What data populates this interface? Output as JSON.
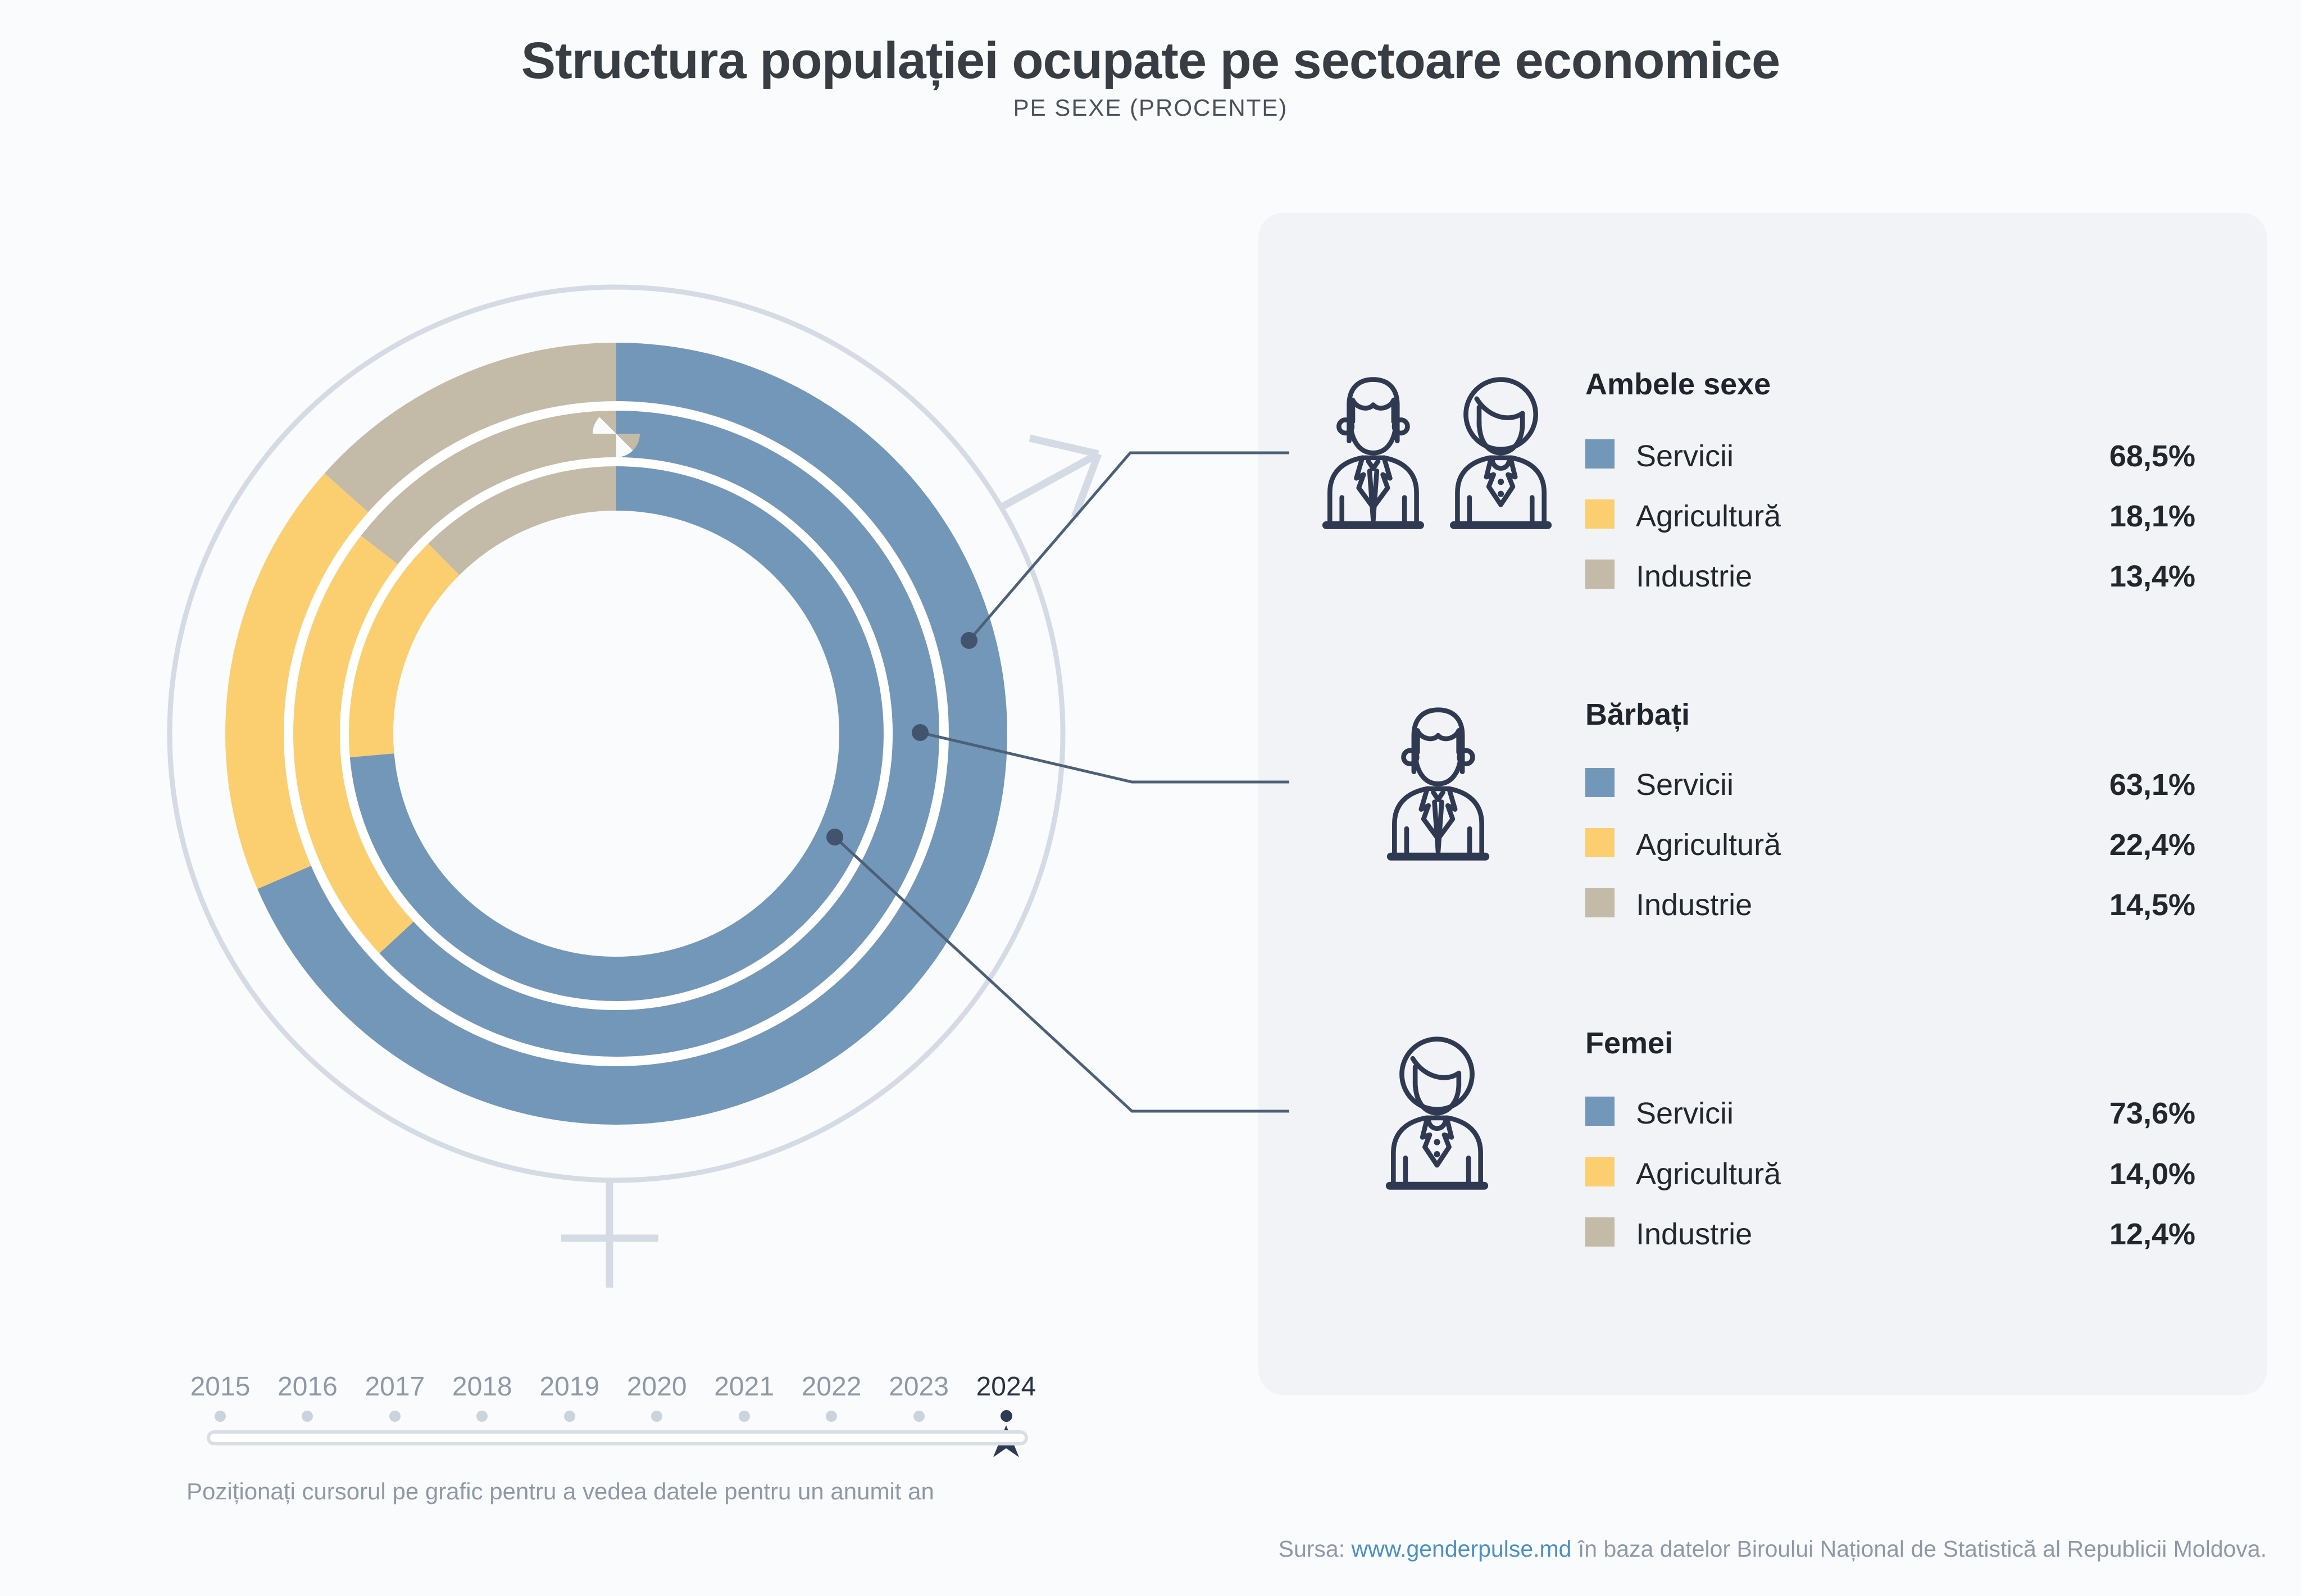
{
  "header": {
    "title": "Structura populației ocupate pe sectoare economice",
    "subtitle": "PE SEXE (PROCENTE)"
  },
  "chart_data": {
    "type": "donut",
    "title": "Structura populației ocupate pe sectoare economice",
    "subtitle": "PE SEXE (PROCENTE)",
    "year": "2024",
    "unit": "%",
    "categories": [
      "Servicii",
      "Agricultură",
      "Industrie"
    ],
    "colors": [
      "#7397b9",
      "#fbce70",
      "#c3baa8"
    ],
    "start": "12-oclock-clockwise",
    "rings": [
      {
        "name": "Ambele sexe",
        "position": "outer",
        "values": [
          68.5,
          18.1,
          13.4
        ]
      },
      {
        "name": "Bărbați",
        "position": "middle",
        "values": [
          63.1,
          22.4,
          14.5
        ]
      },
      {
        "name": "Femei",
        "position": "inner",
        "values": [
          73.6,
          14.0,
          12.4
        ]
      }
    ]
  },
  "colors": {
    "servicii": "#7397b9",
    "agricultura": "#fbce70",
    "industrie": "#c3baa8",
    "accent_navy": "#2e3a52",
    "callout": "#4d6078",
    "gender_symbol": "#d4dbe4",
    "panel_bg": "#f1f3f6",
    "page_bg": "#fafbfc",
    "link_blue": "#4a8fc3"
  },
  "legend": {
    "groups": [
      {
        "title": "Ambele sexe",
        "rows": [
          {
            "label": "Servicii",
            "value_text": "68,5%",
            "value_num": 68.5
          },
          {
            "label": "Agricultură",
            "value_text": "18,1%",
            "value_num": 18.1
          },
          {
            "label": "Industrie",
            "value_text": "13,4%",
            "value_num": 13.4
          }
        ]
      },
      {
        "title": "Bărbați",
        "rows": [
          {
            "label": "Servicii",
            "value_text": "63,1%",
            "value_num": 63.1
          },
          {
            "label": "Agricultură",
            "value_text": "22,4%",
            "value_num": 22.4
          },
          {
            "label": "Industrie",
            "value_text": "14,5%",
            "value_num": 14.5
          }
        ]
      },
      {
        "title": "Femei",
        "rows": [
          {
            "label": "Servicii",
            "value_text": "73,6%",
            "value_num": 73.6
          },
          {
            "label": "Agricultură",
            "value_text": "14,0%",
            "value_num": 14.0
          },
          {
            "label": "Industrie",
            "value_text": "12,4%",
            "value_num": 12.4
          }
        ]
      }
    ]
  },
  "timeline": {
    "years": [
      "2015",
      "2016",
      "2017",
      "2018",
      "2019",
      "2020",
      "2021",
      "2022",
      "2023",
      "2024"
    ],
    "active": "2024",
    "hint": "Poziționați cursorul pe grafic pentru a vedea datele pentru un anumit an"
  },
  "source": {
    "prefix": "Sursa: ",
    "link_text": "www.genderpulse.md",
    "suffix": " în baza datelor Biroului Național de Statistică al Republicii Moldova."
  }
}
